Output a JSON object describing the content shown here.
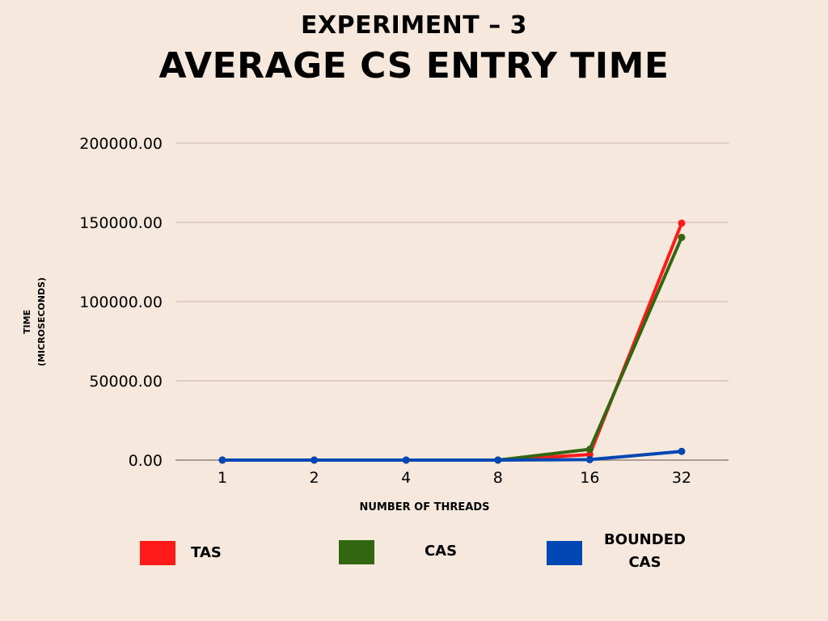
{
  "chart_data": {
    "type": "line",
    "title": "AVERAGE CS ENTRY TIME",
    "subtitle": "EXPERIMENT – 3",
    "xlabel": "NUMBER OF THREADS",
    "ylabel_line1": "TIME",
    "ylabel_line2": "(MICROSECONDS)",
    "categories": [
      "1",
      "2",
      "4",
      "8",
      "16",
      "32"
    ],
    "ylim": [
      0,
      200000
    ],
    "yticks": [
      "0.00",
      "50000.00",
      "100000.00",
      "150000.00",
      "200000.00"
    ],
    "grid": true,
    "legend_position": "bottom",
    "series": [
      {
        "name": "TAS",
        "color": "#ff1a1a",
        "values": [
          0,
          0,
          0,
          0,
          3500,
          149500
        ]
      },
      {
        "name": "CAS",
        "color": "#336611",
        "values": [
          0,
          0,
          0,
          0,
          6800,
          140500
        ]
      },
      {
        "name": "BOUNDED CAS",
        "color": "#0047b3",
        "values": [
          0,
          0,
          0,
          0,
          300,
          5500
        ]
      }
    ],
    "legend": [
      {
        "label_line1": "TAS",
        "label_line2": "",
        "color": "#ff1a1a"
      },
      {
        "label_line1": "CAS",
        "label_line2": "",
        "color": "#336611"
      },
      {
        "label_line1": "BOUNDED",
        "label_line2": "CAS",
        "color": "#0047b3"
      }
    ]
  }
}
